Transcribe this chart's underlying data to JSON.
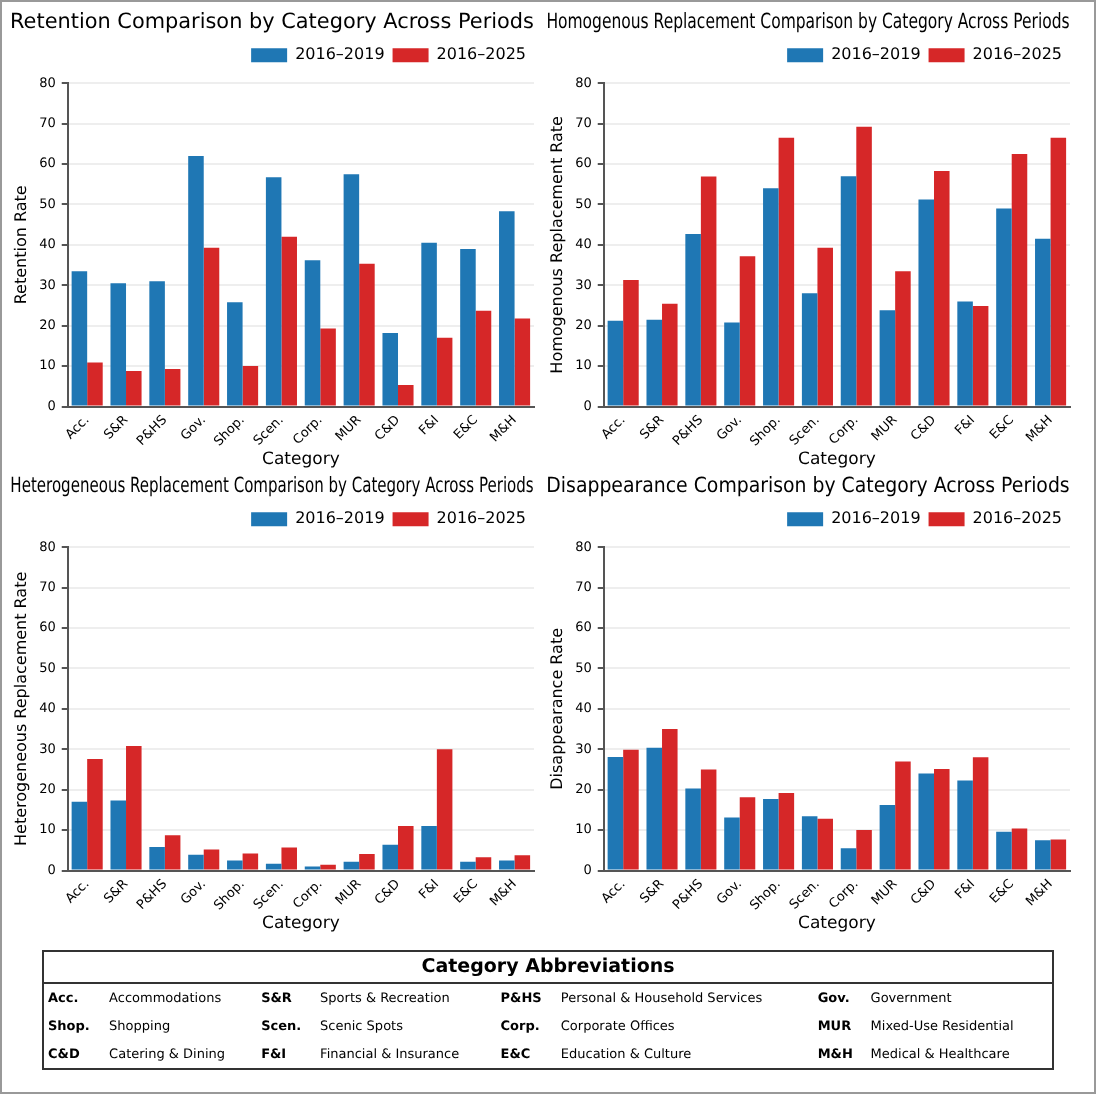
{
  "chart_data": [
    {
      "type": "bar",
      "title": "Retention Comparison by Category Across Periods",
      "xlabel": "Category",
      "ylabel": "Retention Rate",
      "categories": [
        "Acc.",
        "S&R",
        "P&HS",
        "Gov.",
        "Shop.",
        "Scen.",
        "Corp.",
        "MUR",
        "C&D",
        "F&I",
        "E&C",
        "M&H"
      ],
      "series": [
        {
          "name": "2016–2019",
          "color": "#1f77b4",
          "values": [
            33.5,
            30.5,
            31,
            62,
            25.8,
            56.7,
            36.2,
            57.5,
            18.2,
            40.5,
            39,
            48.3
          ]
        },
        {
          "name": "2016–2025",
          "color": "#d62728",
          "values": [
            10.9,
            8.8,
            9.3,
            39.3,
            10,
            42,
            19.3,
            35.3,
            5.3,
            17,
            23.7,
            21.8
          ]
        }
      ],
      "ylim": [
        0,
        80
      ],
      "yticks": [
        0,
        10,
        20,
        30,
        40,
        50,
        60,
        70,
        80
      ],
      "grid": "y",
      "legend": "top right"
    },
    {
      "type": "bar",
      "title": "Homogenous Replacement Comparison by Category Across Periods",
      "xlabel": "Category",
      "ylabel": "Homogenous Replacement Rate",
      "categories": [
        "Acc.",
        "S&R",
        "P&HS",
        "Gov.",
        "Shop.",
        "Scen.",
        "Corp.",
        "MUR",
        "C&D",
        "F&I",
        "E&C",
        "M&H"
      ],
      "series": [
        {
          "name": "2016–2019",
          "color": "#1f77b4",
          "values": [
            21.2,
            21.5,
            42.7,
            20.8,
            54,
            28,
            57,
            23.8,
            51.2,
            26,
            49,
            41.5
          ]
        },
        {
          "name": "2016–2025",
          "color": "#d62728",
          "values": [
            31.3,
            25.4,
            56.9,
            37.2,
            66.5,
            39.3,
            69.2,
            33.5,
            58.3,
            24.9,
            62.5,
            66.5
          ]
        }
      ],
      "ylim": [
        0,
        80
      ],
      "yticks": [
        0,
        10,
        20,
        30,
        40,
        50,
        60,
        70,
        80
      ],
      "grid": "y",
      "legend": "top right"
    },
    {
      "type": "bar",
      "title": "Heterogeneous Replacement Comparison by Category Across Periods",
      "xlabel": "Category",
      "ylabel": "Heterogeneous Replacement Rate",
      "categories": [
        "Acc.",
        "S&R",
        "P&HS",
        "Gov.",
        "Shop.",
        "Scen.",
        "Corp.",
        "MUR",
        "C&D",
        "F&I",
        "E&C",
        "M&H"
      ],
      "series": [
        {
          "name": "2016–2019",
          "color": "#1f77b4",
          "values": [
            17,
            17.3,
            5.8,
            3.9,
            2.5,
            1.7,
            1,
            2.2,
            6.4,
            11,
            2.2,
            2.5
          ]
        },
        {
          "name": "2016–2025",
          "color": "#d62728",
          "values": [
            27.6,
            30.8,
            8.7,
            5.2,
            4.2,
            5.7,
            1.4,
            4.1,
            11,
            30,
            3.3,
            3.8
          ]
        }
      ],
      "ylim": [
        0,
        80
      ],
      "yticks": [
        0,
        10,
        20,
        30,
        40,
        50,
        60,
        70,
        80
      ],
      "grid": "y",
      "legend": "top right"
    },
    {
      "type": "bar",
      "title": "Disappearance Comparison by Category Across Periods",
      "xlabel": "Category",
      "ylabel": "Disappearance Rate",
      "categories": [
        "Acc.",
        "S&R",
        "P&HS",
        "Gov.",
        "Shop.",
        "Scen.",
        "Corp.",
        "MUR",
        "C&D",
        "F&I",
        "E&C",
        "M&H"
      ],
      "series": [
        {
          "name": "2016–2019",
          "color": "#1f77b4",
          "values": [
            28.1,
            30.4,
            20.3,
            13.1,
            17.7,
            13.4,
            5.5,
            16.2,
            24,
            22.3,
            9.6,
            7.5
          ]
        },
        {
          "name": "2016–2025",
          "color": "#d62728",
          "values": [
            29.9,
            35,
            25,
            18.1,
            19.2,
            12.8,
            10,
            27,
            25.1,
            28,
            10.4,
            7.7
          ]
        }
      ],
      "ylim": [
        0,
        80
      ],
      "yticks": [
        0,
        10,
        20,
        30,
        40,
        50,
        60,
        70,
        80
      ],
      "grid": "y",
      "legend": "top right"
    },
    {
      "type": "other",
      "title": "Category Abbreviations",
      "annotations": [
        "Acc.",
        "Accommodations",
        "S&R",
        "Sports & Recreation",
        "P&HS",
        "Personal & Household Services",
        "Gov.",
        "Government",
        "Shop.",
        "Shopping",
        "Scen.",
        "Scenic Spots",
        "Corp.",
        "Corporate Offices",
        "MUR",
        "Mixed-Use Residential",
        "C&D",
        "Catering & Dining",
        "F&I",
        "Financial & Insurance",
        "E&C",
        "Education & Culture",
        "M&H",
        "Medical & Healthcare"
      ]
    }
  ]
}
